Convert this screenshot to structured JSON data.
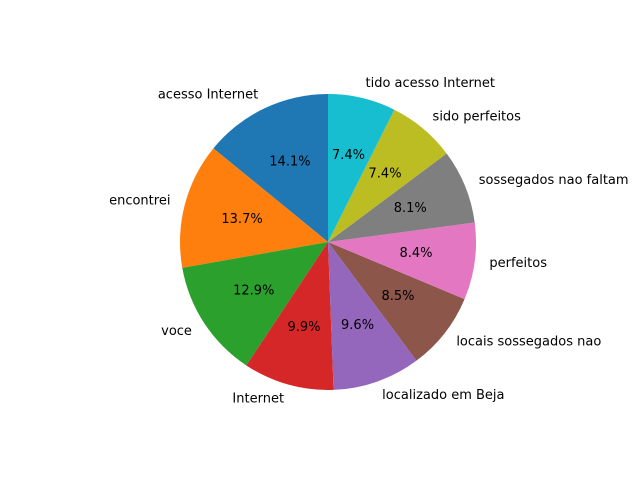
{
  "chart_data": {
    "type": "pie",
    "labels": [
      "acesso Internet",
      "encontrei",
      "voce",
      "Internet",
      "localizado em Beja",
      "locais sossegados nao",
      "perfeitos",
      "sossegados nao faltam",
      "sido perfeitos",
      "tido acesso Internet"
    ],
    "values": [
      14.1,
      13.7,
      12.9,
      9.9,
      9.6,
      8.5,
      8.4,
      8.1,
      7.4,
      7.4
    ],
    "percent_labels": [
      "14.1%",
      "13.7%",
      "12.9%",
      "9.9%",
      "9.6%",
      "8.5%",
      "8.4%",
      "8.1%",
      "7.4%",
      "7.4%"
    ],
    "colors": [
      "#1f77b4",
      "#ff7f0e",
      "#2ca02c",
      "#d62728",
      "#9467bd",
      "#8c564b",
      "#e377c2",
      "#7f7f7f",
      "#bcbd22",
      "#17becf"
    ],
    "start_angle_deg": 90,
    "direction": "counterclockwise",
    "title": ""
  }
}
